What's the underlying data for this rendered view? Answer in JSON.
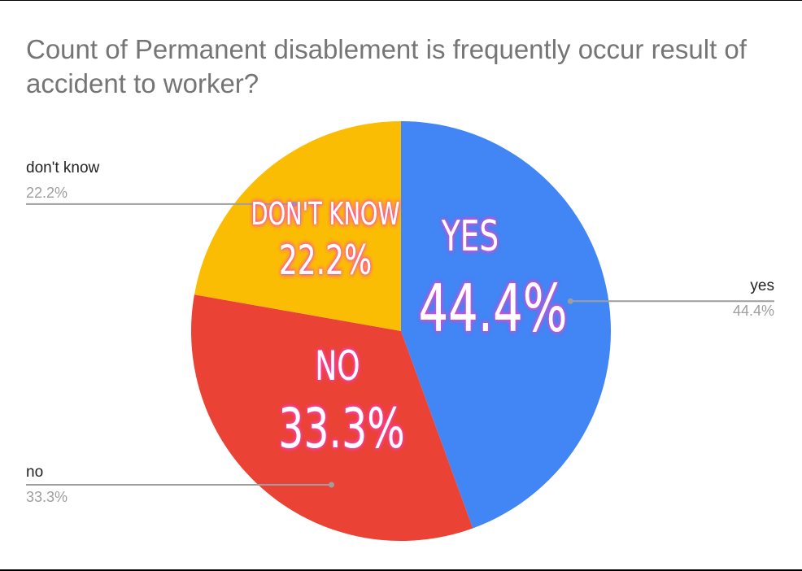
{
  "chart_data": {
    "type": "pie",
    "title": "Count of Permanent disablement is frequently occur result of accident to worker?",
    "slices": [
      {
        "label": "yes",
        "value": 44.4,
        "percent_label": "44.4%",
        "inner_name": "YES",
        "inner_percent": "44.4%",
        "color": "#4285f4"
      },
      {
        "label": "no",
        "value": 33.3,
        "percent_label": "33.3%",
        "inner_name": "NO",
        "inner_percent": "33.3%",
        "color": "#ea4335"
      },
      {
        "label": "don't know",
        "value": 22.2,
        "percent_label": "22.2%",
        "inner_name": "DON'T KNOW",
        "inner_percent": "22.2%",
        "color": "#fbbc04"
      }
    ],
    "start_angle_deg": 0,
    "direction": "clockwise",
    "legend": "labeled-leader-lines"
  }
}
